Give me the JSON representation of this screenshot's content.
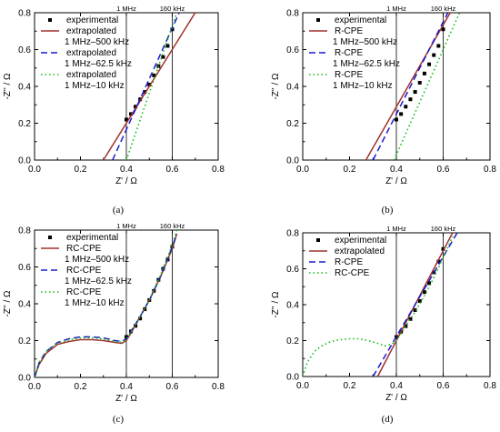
{
  "chart_data": [
    {
      "type": "scatter",
      "caption": "(a)",
      "xlabel": "Z' / Ω",
      "ylabel": "-Z'' / Ω",
      "xlim": [
        0,
        0.8
      ],
      "ylim": [
        0,
        0.8
      ],
      "xticks": [
        0.0,
        0.2,
        0.4,
        0.6,
        0.8
      ],
      "yticks": [
        0.0,
        0.2,
        0.4,
        0.6,
        0.8
      ],
      "tick_labels_x": [
        "0.0",
        "0.2",
        "0.4",
        "0.6",
        "0.8"
      ],
      "tick_labels_y": [
        "0.0",
        "0.2",
        "0.4",
        "0.6",
        "0.8"
      ],
      "legend_position": "top-left",
      "markers": [
        {
          "label": "1 MHz",
          "x": 0.4
        },
        {
          "label": "160 kHz",
          "x": 0.6
        }
      ],
      "series": [
        {
          "name": "experimental",
          "style": "square",
          "color": "#000000",
          "x": [
            0.4,
            0.42,
            0.44,
            0.46,
            0.48,
            0.5,
            0.52,
            0.54,
            0.56,
            0.58,
            0.6
          ],
          "y": [
            0.22,
            0.25,
            0.29,
            0.33,
            0.37,
            0.41,
            0.46,
            0.51,
            0.56,
            0.62,
            0.71
          ]
        },
        {
          "name": "extrapolated",
          "sub": "1 MHz–500 kHz",
          "style": "solid",
          "color": "#a0322d",
          "x": [
            0.3,
            0.7
          ],
          "y": [
            0.0,
            0.8
          ]
        },
        {
          "name": "extrapolated",
          "sub": "1 MHz–62.5 kHz",
          "style": "dash",
          "color": "#1a1acf",
          "x": [
            0.34,
            0.63
          ],
          "y": [
            0.0,
            0.8
          ]
        },
        {
          "name": "extrapolated",
          "sub": "1 MHz–10 kHz",
          "style": "dot",
          "color": "#11bb11",
          "x": [
            0.4,
            0.62
          ],
          "y": [
            0.0,
            0.8
          ]
        }
      ]
    },
    {
      "type": "scatter",
      "caption": "(b)",
      "xlabel": "Z' / Ω",
      "ylabel": "-Z'' / Ω",
      "xlim": [
        0,
        0.8
      ],
      "ylim": [
        0,
        0.8
      ],
      "xticks": [
        0.0,
        0.2,
        0.4,
        0.6,
        0.8
      ],
      "yticks": [
        0.0,
        0.2,
        0.4,
        0.6,
        0.8
      ],
      "tick_labels_x": [
        "0.0",
        "0.2",
        "0.4",
        "0.6",
        "0.8"
      ],
      "tick_labels_y": [
        "0.0",
        "0.2",
        "0.4",
        "0.6",
        "0.8"
      ],
      "legend_position": "top-left",
      "markers": [
        {
          "label": "1 MHz",
          "x": 0.4
        },
        {
          "label": "160 kHz",
          "x": 0.6
        }
      ],
      "series": [
        {
          "name": "experimental",
          "style": "square",
          "color": "#000000",
          "x": [
            0.4,
            0.42,
            0.44,
            0.46,
            0.48,
            0.5,
            0.52,
            0.54,
            0.56,
            0.58,
            0.6
          ],
          "y": [
            0.22,
            0.25,
            0.29,
            0.33,
            0.37,
            0.42,
            0.47,
            0.52,
            0.57,
            0.62,
            0.71
          ]
        },
        {
          "name": "R-CPE",
          "sub": "1 MHz–500 kHz",
          "style": "solid",
          "color": "#a0322d",
          "x": [
            0.27,
            0.63
          ],
          "y": [
            0.0,
            0.8
          ]
        },
        {
          "name": "R-CPE",
          "sub": "1 MHz–62.5 kHz",
          "style": "dash",
          "color": "#1a1acf",
          "x": [
            0.3,
            0.62
          ],
          "y": [
            0.0,
            0.8
          ]
        },
        {
          "name": "R-CPE",
          "sub": "1 MHz–10 kHz",
          "style": "dot",
          "color": "#11bb11",
          "x": [
            0.39,
            0.67
          ],
          "y": [
            0.0,
            0.8
          ]
        }
      ]
    },
    {
      "type": "scatter",
      "caption": "(c)",
      "xlabel": "Z' / Ω",
      "ylabel": "-Z'' / Ω",
      "xlim": [
        0,
        0.8
      ],
      "ylim": [
        0,
        0.8
      ],
      "xticks": [
        0.0,
        0.2,
        0.4,
        0.6,
        0.8
      ],
      "yticks": [
        0.0,
        0.2,
        0.4,
        0.6,
        0.8
      ],
      "tick_labels_x": [
        "0.0",
        "0.2",
        "0.4",
        "0.6",
        "0.8"
      ],
      "tick_labels_y": [
        "0.0",
        "0.2",
        "0.4",
        "0.6",
        "0.8"
      ],
      "legend_position": "top-left",
      "markers": [
        {
          "label": "1 MHz",
          "x": 0.4
        },
        {
          "label": "160 kHz",
          "x": 0.6
        }
      ],
      "series": [
        {
          "name": "experimental",
          "style": "square",
          "color": "#000000",
          "x": [
            0.4,
            0.42,
            0.44,
            0.46,
            0.48,
            0.5,
            0.52,
            0.54,
            0.56,
            0.58,
            0.6
          ],
          "y": [
            0.22,
            0.25,
            0.28,
            0.32,
            0.37,
            0.42,
            0.47,
            0.53,
            0.59,
            0.64,
            0.71
          ]
        },
        {
          "name": "RC-CPE",
          "sub": "1 MHz–500 kHz",
          "style": "solid",
          "color": "#a0322d",
          "x": [
            0.0,
            0.02,
            0.05,
            0.1,
            0.15,
            0.2,
            0.25,
            0.3,
            0.35,
            0.38,
            0.4,
            0.42,
            0.46,
            0.5,
            0.55,
            0.6,
            0.62
          ],
          "y": [
            0.0,
            0.07,
            0.13,
            0.18,
            0.195,
            0.205,
            0.205,
            0.2,
            0.19,
            0.185,
            0.2,
            0.24,
            0.33,
            0.42,
            0.55,
            0.7,
            0.78
          ]
        },
        {
          "name": "RC-CPE",
          "sub": "1 MHz–62.5 kHz",
          "style": "dash",
          "color": "#1a1acf",
          "x": [
            0.0,
            0.02,
            0.05,
            0.1,
            0.15,
            0.2,
            0.25,
            0.3,
            0.35,
            0.38,
            0.4,
            0.42,
            0.46,
            0.5,
            0.55,
            0.6,
            0.62
          ],
          "y": [
            0.0,
            0.08,
            0.14,
            0.19,
            0.21,
            0.22,
            0.22,
            0.215,
            0.2,
            0.195,
            0.21,
            0.25,
            0.33,
            0.42,
            0.55,
            0.71,
            0.78
          ]
        },
        {
          "name": "RC-CPE",
          "sub": "1 MHz–10 kHz",
          "style": "dot",
          "color": "#11bb11",
          "x": [
            0.0,
            0.02,
            0.05,
            0.1,
            0.15,
            0.2,
            0.25,
            0.3,
            0.35,
            0.38,
            0.4,
            0.42,
            0.46,
            0.5,
            0.55,
            0.6,
            0.62
          ],
          "y": [
            0.0,
            0.08,
            0.14,
            0.185,
            0.205,
            0.215,
            0.215,
            0.21,
            0.195,
            0.19,
            0.205,
            0.245,
            0.33,
            0.42,
            0.56,
            0.72,
            0.8
          ]
        }
      ]
    },
    {
      "type": "scatter",
      "caption": "(d)",
      "xlabel": "Z' / Ω",
      "ylabel": "-Z'' / Ω",
      "xlim": [
        0,
        0.8
      ],
      "ylim": [
        0,
        0.8
      ],
      "xticks": [
        0.0,
        0.2,
        0.4,
        0.6,
        0.8
      ],
      "yticks": [
        0.0,
        0.2,
        0.4,
        0.6,
        0.8
      ],
      "tick_labels_x": [
        "0.0",
        "0.2",
        "0.4",
        "0.6",
        "0.8"
      ],
      "tick_labels_y": [
        "0.0",
        "0.2",
        "0.4",
        "0.6",
        "0.8"
      ],
      "legend_position": "top-left",
      "markers": [
        {
          "label": "1 MHz",
          "x": 0.4
        },
        {
          "label": "160 kHz",
          "x": 0.6
        }
      ],
      "series": [
        {
          "name": "experimental",
          "style": "square",
          "color": "#000000",
          "x": [
            0.4,
            0.42,
            0.44,
            0.46,
            0.48,
            0.5,
            0.52,
            0.54,
            0.56,
            0.58,
            0.6
          ],
          "y": [
            0.22,
            0.25,
            0.28,
            0.32,
            0.37,
            0.42,
            0.47,
            0.52,
            0.58,
            0.64,
            0.71
          ]
        },
        {
          "name": "extrapolated",
          "style": "solid",
          "color": "#a0322d",
          "x": [
            0.32,
            0.64
          ],
          "y": [
            0.0,
            0.8
          ]
        },
        {
          "name": "R-CPE",
          "style": "dash",
          "color": "#1a1acf",
          "x": [
            0.3,
            0.66
          ],
          "y": [
            0.0,
            0.8
          ]
        },
        {
          "name": "RC-CPE",
          "style": "dot",
          "color": "#11bb11",
          "x": [
            0.0,
            0.02,
            0.05,
            0.08,
            0.12,
            0.16,
            0.2,
            0.24,
            0.28,
            0.32,
            0.35,
            0.38,
            0.4,
            0.44,
            0.48,
            0.52,
            0.56,
            0.6,
            0.64
          ],
          "y": [
            0.0,
            0.08,
            0.14,
            0.17,
            0.195,
            0.205,
            0.21,
            0.21,
            0.2,
            0.185,
            0.17,
            0.18,
            0.2,
            0.28,
            0.36,
            0.45,
            0.55,
            0.66,
            0.78
          ]
        }
      ]
    }
  ]
}
